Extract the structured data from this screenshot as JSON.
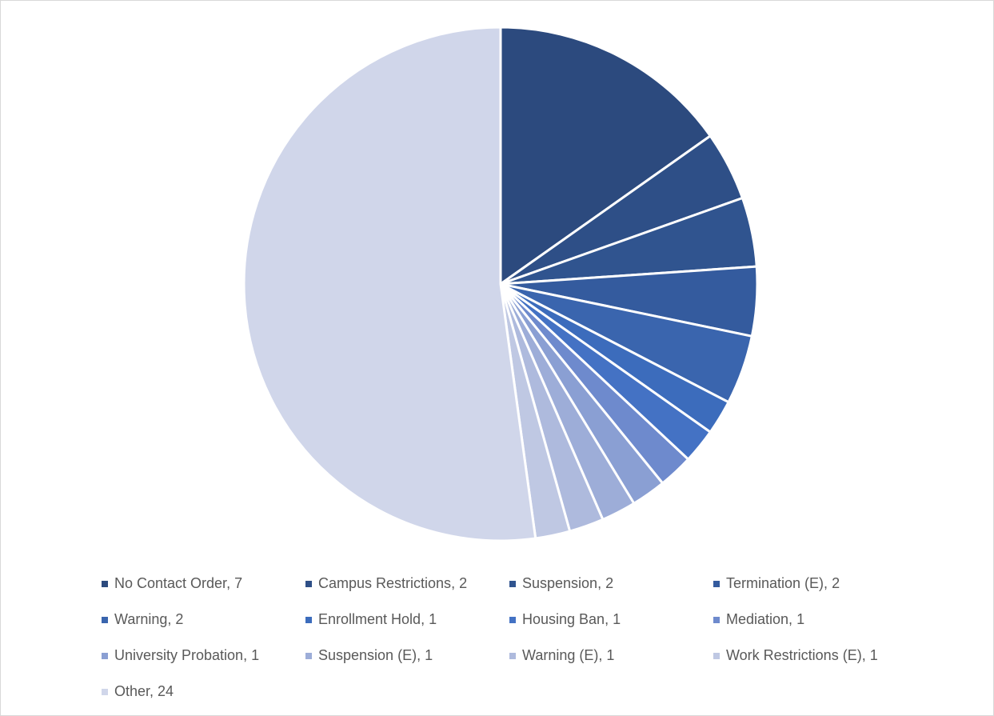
{
  "chart_data": {
    "type": "pie",
    "categories": [
      "No Contact Order",
      "Campus Restrictions",
      "Suspension",
      "Termination (E)",
      "Warning",
      "Enrollment Hold",
      "Housing Ban",
      "Mediation",
      "University Probation",
      "Suspension (E)",
      "Warning (E)",
      "Work Restrictions (E)",
      "Other"
    ],
    "values": [
      7,
      2,
      2,
      2,
      2,
      1,
      1,
      1,
      1,
      1,
      1,
      1,
      24
    ],
    "colors": [
      "#2c4a7e",
      "#2e4f87",
      "#30548f",
      "#345b9e",
      "#3a65ae",
      "#3c6cbc",
      "#4472c4",
      "#6e8acd",
      "#8a9fd3",
      "#9dadd8",
      "#aebadd",
      "#bfc8e3",
      "#d0d6ea"
    ],
    "legend_separator": ", ",
    "legend": "bottom"
  }
}
